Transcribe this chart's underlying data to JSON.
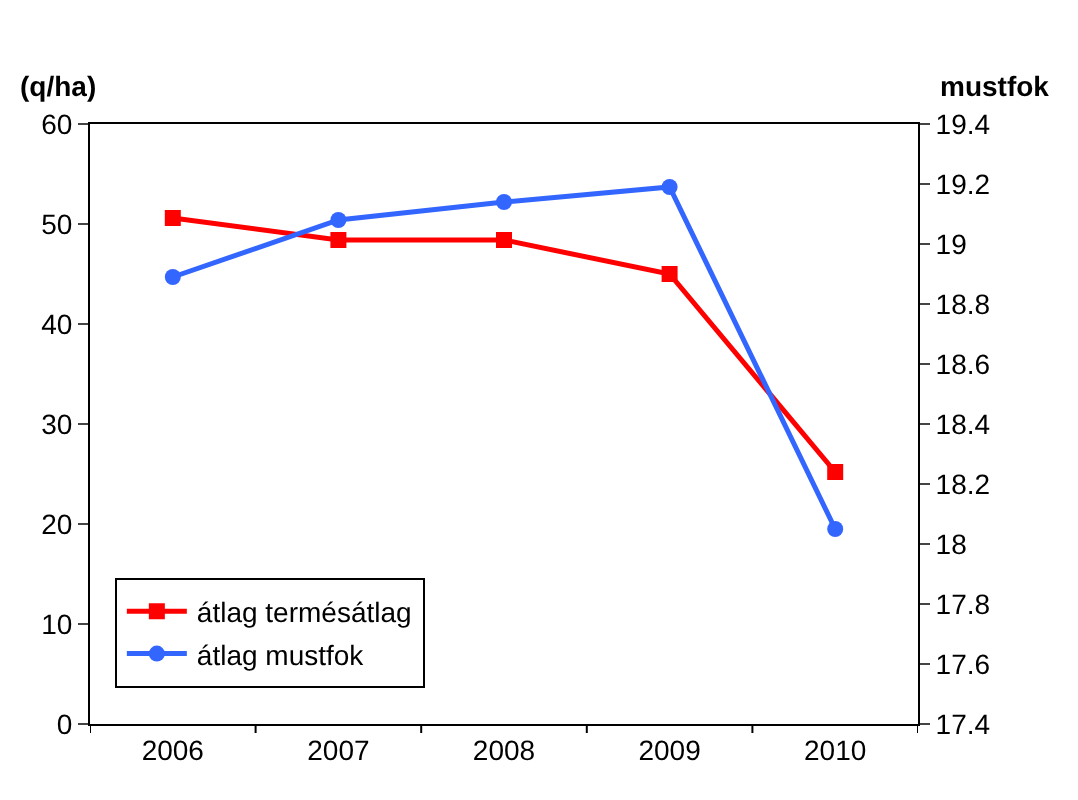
{
  "chart_data": {
    "type": "line",
    "ylabel": "(q/ha)",
    "y2label": "mustfok",
    "categories": [
      "2006",
      "2007",
      "2008",
      "2009",
      "2010"
    ],
    "series": [
      {
        "name": "átlag termésátlag",
        "color": "#ff0000",
        "marker": "square",
        "values": [
          50.6,
          48.4,
          48.4,
          45,
          25.2
        ]
      },
      {
        "name": "átlag mustfok",
        "color": "#3366ff",
        "marker": "circle",
        "axis": "y2",
        "values": [
          18.89,
          19.08,
          19.14,
          19.19,
          18.05
        ]
      }
    ],
    "ylim": [
      0,
      60
    ],
    "yticks": [
      0,
      10,
      20,
      30,
      40,
      50,
      60
    ],
    "y2lim": [
      17.4,
      19.4
    ],
    "y2ticks": [
      17.4,
      17.6,
      17.8,
      18,
      18.2,
      18.4,
      18.6,
      18.8,
      19,
      19.2,
      19.4
    ],
    "grid": false,
    "legend": "bottom left"
  }
}
